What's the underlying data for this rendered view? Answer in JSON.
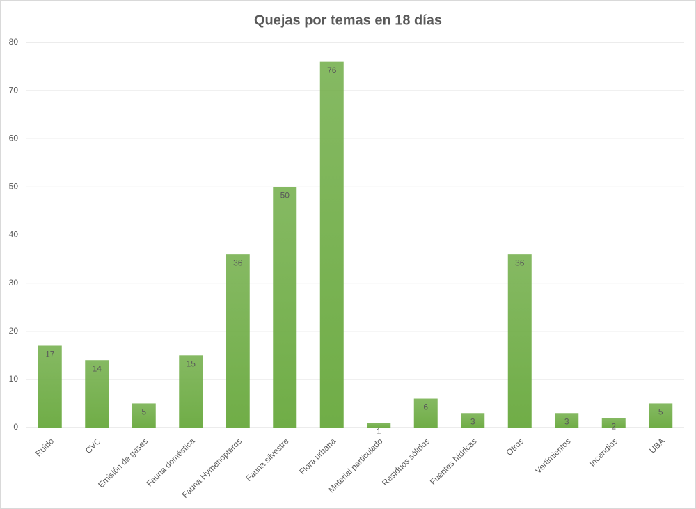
{
  "chart_data": {
    "type": "bar",
    "title": "Quejas por temas en 18 días",
    "categories": [
      "Ruido",
      "CVC",
      "Emisión de gases",
      "Fauna doméstica",
      "Fauna Hymenopteros",
      "Fauna silvestre",
      "Flora urbana",
      "Material particulado",
      "Residuos sólidos",
      "Fuentes hídricas",
      "Otros",
      "Vertimientos",
      "Incendios",
      "UBA"
    ],
    "values": [
      17,
      14,
      5,
      15,
      36,
      50,
      76,
      1,
      6,
      3,
      36,
      3,
      2,
      5
    ],
    "color": "#70ad47",
    "ylim": [
      0,
      80
    ],
    "yticks": [
      0,
      10,
      20,
      30,
      40,
      50,
      60,
      70,
      80
    ],
    "grid": true
  }
}
